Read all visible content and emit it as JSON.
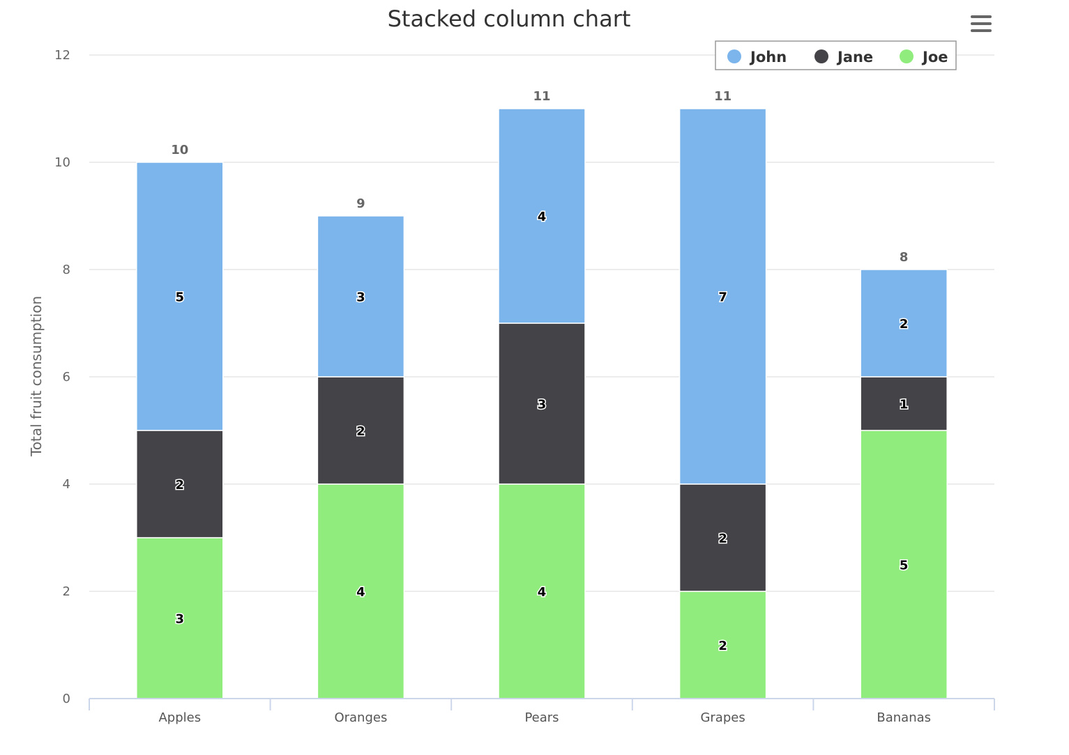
{
  "chart_data": {
    "type": "bar",
    "stacked": true,
    "title": "Stacked column chart",
    "xlabel": "",
    "ylabel": "Total fruit consumption",
    "categories": [
      "Apples",
      "Oranges",
      "Pears",
      "Grapes",
      "Bananas"
    ],
    "ylim": [
      0,
      12
    ],
    "yticks": [
      0,
      2,
      4,
      6,
      8,
      10,
      12
    ],
    "grid": true,
    "legend_position": "top-right",
    "stack_order": [
      "Joe",
      "Jane",
      "John"
    ],
    "series": [
      {
        "name": "John",
        "color": "#7cb5ec",
        "values": [
          5,
          3,
          4,
          7,
          2
        ]
      },
      {
        "name": "Jane",
        "color": "#434348",
        "values": [
          2,
          2,
          3,
          2,
          1
        ]
      },
      {
        "name": "Joe",
        "color": "#90ed7d",
        "values": [
          3,
          4,
          4,
          2,
          5
        ]
      }
    ],
    "totals": [
      10,
      9,
      11,
      11,
      8
    ],
    "show_data_labels": true,
    "show_totals": true
  },
  "toolbar": {
    "menu_icon": "hamburger-menu-icon"
  }
}
